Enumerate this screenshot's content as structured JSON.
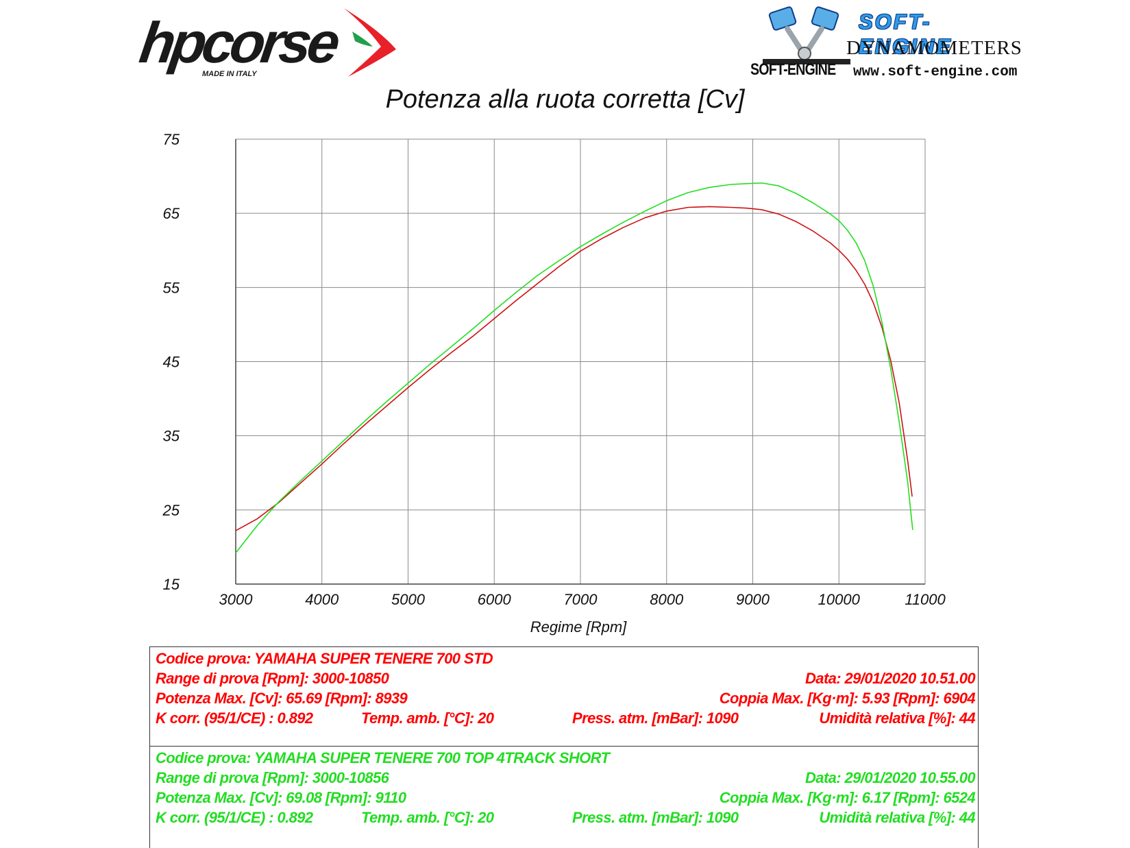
{
  "header": {
    "hp_logo": {
      "word": "hpcorse",
      "tagline": "MADE IN ITALY",
      "colors": {
        "red": "#e8202a",
        "green": "#22a04a",
        "dark": "#1a1a1a"
      }
    },
    "se_logo": {
      "title": "SOFT-ENGINE",
      "subtitle": "DYNAMOMETERS",
      "brand": "SOFT-ENGINE",
      "url": "www.soft-engine.com",
      "colors": {
        "blue": "#2f9be8",
        "dark_blue": "#0d3d8a"
      }
    }
  },
  "chart_data": {
    "type": "line",
    "title": "Potenza alla ruota corretta [Cv]",
    "xlabel": "Regime [Rpm]",
    "ylabel": "",
    "xlim": [
      3000,
      11000
    ],
    "ylim": [
      15,
      75
    ],
    "xticks": [
      3000,
      4000,
      5000,
      6000,
      7000,
      8000,
      9000,
      10000,
      11000
    ],
    "yticks": [
      15,
      25,
      35,
      45,
      55,
      65,
      75
    ],
    "grid": true,
    "colors": {
      "grid": "#8a8a8a",
      "axis": "#444444"
    },
    "series": [
      {
        "color": "#cc1111",
        "x": [
          3000,
          3250,
          3500,
          3750,
          4000,
          4250,
          4500,
          4750,
          5000,
          5250,
          5500,
          5750,
          6000,
          6250,
          6500,
          6750,
          7000,
          7250,
          7500,
          7750,
          8000,
          8250,
          8500,
          8750,
          8939,
          9100,
          9300,
          9500,
          9700,
          9900,
          10000,
          10100,
          10200,
          10300,
          10400,
          10500,
          10600,
          10700,
          10800,
          10850
        ],
        "y": [
          22.2,
          23.8,
          26.0,
          28.6,
          31.2,
          33.9,
          36.5,
          39.0,
          41.5,
          43.9,
          46.2,
          48.4,
          50.8,
          53.2,
          55.5,
          57.8,
          59.9,
          61.6,
          63.1,
          64.4,
          65.3,
          65.8,
          65.9,
          65.8,
          65.69,
          65.5,
          64.9,
          63.9,
          62.6,
          61.0,
          60.0,
          58.8,
          57.3,
          55.4,
          52.9,
          49.6,
          45.2,
          39.4,
          31.5,
          26.8
        ]
      },
      {
        "color": "#22dd22",
        "x": [
          3000,
          3250,
          3500,
          3750,
          4000,
          4250,
          4500,
          4750,
          5000,
          5250,
          5500,
          5750,
          6000,
          6250,
          6500,
          6750,
          7000,
          7250,
          7500,
          7750,
          8000,
          8250,
          8500,
          8750,
          9000,
          9110,
          9300,
          9500,
          9700,
          9900,
          10000,
          10100,
          10200,
          10300,
          10400,
          10500,
          10600,
          10700,
          10800,
          10856
        ],
        "y": [
          19.2,
          22.9,
          26.1,
          28.9,
          31.6,
          34.3,
          37.0,
          39.6,
          42.1,
          44.6,
          47.0,
          49.4,
          51.9,
          54.3,
          56.6,
          58.6,
          60.5,
          62.2,
          63.8,
          65.3,
          66.7,
          67.8,
          68.5,
          68.9,
          69.05,
          69.08,
          68.7,
          67.7,
          66.4,
          64.9,
          64.0,
          62.7,
          61.0,
          58.6,
          55.1,
          50.3,
          44.1,
          36.8,
          28.6,
          22.3
        ]
      }
    ]
  },
  "info": {
    "s1": {
      "codice": "Codice prova: YAMAHA SUPER TENERE 700 STD",
      "range": "Range di prova [Rpm]: 3000-10850",
      "data": "Data: 29/01/2020   10.51.00",
      "potenza": "Potenza Max. [Cv]: 65.69   [Rpm]: 8939",
      "coppia": "Coppia Max. [Kg·m]: 5.93   [Rpm]: 6904",
      "kcorr": "K corr. (95/1/CE) : 0.892",
      "temp": "Temp. amb. [°C]: 20",
      "press": "Press. atm. [mBar]: 1090",
      "umid": "Umidità relativa [%]: 44"
    },
    "s2": {
      "codice": "Codice prova: YAMAHA SUPER TENERE 700 TOP 4TRACK SHORT",
      "range": "Range di prova [Rpm]: 3000-10856",
      "data": "Data: 29/01/2020   10.55.00",
      "potenza": "Potenza Max. [Cv]: 69.08   [Rpm]: 9110",
      "coppia": "Coppia Max. [Kg·m]: 6.17   [Rpm]: 6524",
      "kcorr": "K corr. (95/1/CE) : 0.892",
      "temp": "Temp. amb. [°C]: 20",
      "press": "Press. atm. [mBar]: 1090",
      "umid": "Umidità relativa [%]: 44"
    }
  }
}
